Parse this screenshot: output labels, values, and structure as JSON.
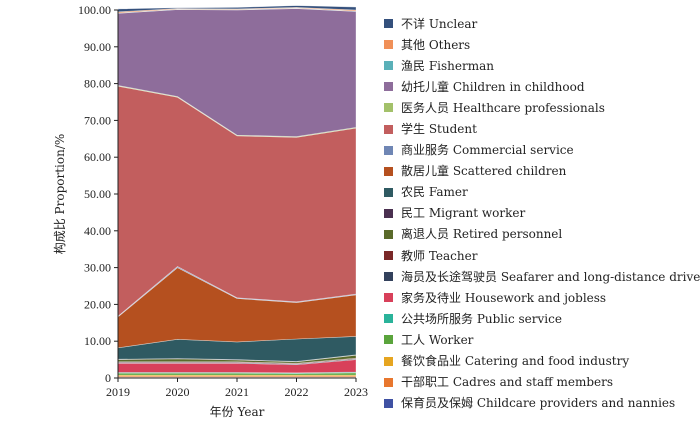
{
  "chart_data": {
    "type": "area",
    "stacked": true,
    "x": [
      "2019",
      "2020",
      "2021",
      "2022",
      "2023"
    ],
    "xlabel": "年份 Year",
    "ylabel": "构成比 Proportion/%",
    "ylim": [
      0,
      100
    ],
    "yticks": [
      "0",
      "10.00",
      "20.00",
      "30.00",
      "40.00",
      "50.00",
      "60.00",
      "70.00",
      "80.00",
      "90.00",
      "100.00"
    ],
    "legend_position": "right",
    "series": [
      {
        "name": "保育员及保姆 Childcare providers and nannies",
        "color": "#3f51a3",
        "values": [
          0.2,
          0.2,
          0.2,
          0.2,
          0.2
        ]
      },
      {
        "name": "干部职工 Cadres and staff members",
        "color": "#e8772e",
        "values": [
          0.3,
          0.3,
          0.3,
          0.3,
          0.3
        ]
      },
      {
        "name": "餐饮食品业 Catering and food industry",
        "color": "#e6a520",
        "values": [
          0.3,
          0.3,
          0.3,
          0.3,
          0.3
        ]
      },
      {
        "name": "工人 Worker",
        "color": "#5aa43c",
        "values": [
          0.5,
          0.5,
          0.5,
          0.4,
          0.6
        ]
      },
      {
        "name": "公共场所服务 Public service",
        "color": "#2ab39a",
        "values": [
          0.2,
          0.2,
          0.2,
          0.2,
          0.2
        ]
      },
      {
        "name": "家务及待业 Housework and jobless",
        "color": "#d8405a",
        "values": [
          2.5,
          2.5,
          2.5,
          2.2,
          3.4
        ]
      },
      {
        "name": "海员及长途驾驶员 Seafarer and long-distance driver",
        "color": "#33415c",
        "values": [
          0.2,
          0.2,
          0.2,
          0.2,
          0.2
        ]
      },
      {
        "name": "教师 Teacher",
        "color": "#7a2828",
        "values": [
          0.2,
          0.2,
          0.2,
          0.2,
          0.2
        ]
      },
      {
        "name": "离退人员 Retired personnel",
        "color": "#5a6a2a",
        "values": [
          0.6,
          0.8,
          0.5,
          0.4,
          0.8
        ]
      },
      {
        "name": "民工 Migrant worker",
        "color": "#4a3050",
        "values": [
          0.1,
          0.1,
          0.1,
          0.1,
          0.1
        ]
      },
      {
        "name": "农民 Famer",
        "color": "#2f5a62",
        "values": [
          3.1,
          5.2,
          4.8,
          6.1,
          5.0
        ]
      },
      {
        "name": "散居儿童 Scattered children",
        "color": "#b5501f",
        "values": [
          8.4,
          19.5,
          11.8,
          9.9,
          11.3
        ]
      },
      {
        "name": "商业服务 Commercial service",
        "color": "#6f86b4",
        "values": [
          0.2,
          0.3,
          0.2,
          0.2,
          0.2
        ]
      },
      {
        "name": "学生 Student",
        "color": "#c25e5e",
        "values": [
          62.5,
          46.0,
          44.0,
          44.7,
          45.1
        ]
      },
      {
        "name": "医务人员 Healthcare professionals",
        "color": "#a3c16a",
        "values": [
          0.2,
          0.2,
          0.2,
          0.2,
          0.2
        ]
      },
      {
        "name": "幼托儿童 Children in childhood",
        "color": "#8e6d9b",
        "values": [
          19.6,
          23.6,
          34.0,
          34.8,
          31.5
        ]
      },
      {
        "name": "渔民 Fisherman",
        "color": "#5ab0b8",
        "values": [
          0.1,
          0.1,
          0.1,
          0.1,
          0.1
        ]
      },
      {
        "name": "其他 Others",
        "color": "#f09058",
        "values": [
          0.3,
          0.2,
          0.2,
          0.2,
          0.3
        ]
      },
      {
        "name": "不详 Unclear",
        "color": "#34507c",
        "values": [
          0.8,
          0.2,
          0.4,
          0.5,
          0.8
        ]
      }
    ]
  }
}
